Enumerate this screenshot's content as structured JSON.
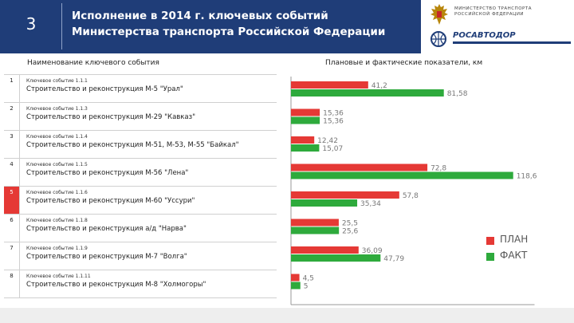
{
  "header": {
    "slide_number": "3",
    "title": "Исполнение в 2014 г. ключевых событий Министерства транспорта Российской Федерации",
    "ministry_text": "МИНИСТЕРСТВО ТРАНСПОРТА РОССИЙСКОЙ ФЕДЕРАЦИИ",
    "agency_logo_text": "РОСАВТОДОР",
    "colors": {
      "header_bg": "#1f3d78"
    }
  },
  "events_panel": {
    "caption": "Наименование ключевого события",
    "rows": [
      {
        "num": "1",
        "event": "Ключевое событие 1.1.1",
        "desc": "Строительство и реконструкция М-5 \"Урал\"",
        "highlight": false
      },
      {
        "num": "2",
        "event": "Ключевое событие 1.1.3",
        "desc": "Строительство и реконструкция М-29 \"Кавказ\"",
        "highlight": false
      },
      {
        "num": "3",
        "event": "Ключевое событие 1.1.4",
        "desc": "Строительство и реконструкция М-51, М-53, М-55 \"Байкал\"",
        "highlight": false
      },
      {
        "num": "4",
        "event": "Ключевое событие 1.1.5",
        "desc": "Строительство и реконструкция М-56 \"Лена\"",
        "highlight": false
      },
      {
        "num": "5",
        "event": "Ключевое событие 1.1.6",
        "desc": "Строительство и реконструкция М-60 \"Уссури\"",
        "highlight": true
      },
      {
        "num": "6",
        "event": "Ключевое событие 1.1.8",
        "desc": "Строительство и реконструкция а/д \"Нарва\"",
        "highlight": false
      },
      {
        "num": "7",
        "event": "Ключевое событие 1.1.9",
        "desc": "Строительство и реконструкция М-7 \"Волга\"",
        "highlight": false
      },
      {
        "num": "8",
        "event": "Ключевое событие 1.1.11",
        "desc": "Строительство и реконструкция М-8 \"Холмогоры\"",
        "highlight": false
      }
    ]
  },
  "chart_data": {
    "type": "bar",
    "orientation": "horizontal",
    "title": "Плановые и фактические показатели, км",
    "categories": [
      "1",
      "2",
      "3",
      "4",
      "5",
      "6",
      "7",
      "8"
    ],
    "series": [
      {
        "name": "ПЛАН",
        "color": "#e53935",
        "values": [
          41.2,
          15.36,
          12.42,
          72.8,
          57.8,
          25.5,
          36.09,
          4.5
        ],
        "labels": [
          "41,2",
          "15,36",
          "12,42",
          "72,8",
          "57,8",
          "25,5",
          "36,09",
          "4,5"
        ]
      },
      {
        "name": "ФАКТ",
        "color": "#2eaa3c",
        "values": [
          81.58,
          15.36,
          15.07,
          118.6,
          35.34,
          25.6,
          47.79,
          5
        ],
        "labels": [
          "81,58",
          "15,36",
          "15,07",
          "118,6",
          "35,34",
          "25,6",
          "47,79",
          "5"
        ]
      }
    ],
    "xlim": [
      0,
      130
    ],
    "xticks": [
      0,
      10,
      20,
      30,
      40,
      50,
      60,
      70,
      80,
      90,
      100,
      110,
      120,
      130
    ],
    "legend": {
      "position": "right",
      "items": [
        "ПЛАН",
        "ФАКТ"
      ]
    },
    "grid": false
  }
}
